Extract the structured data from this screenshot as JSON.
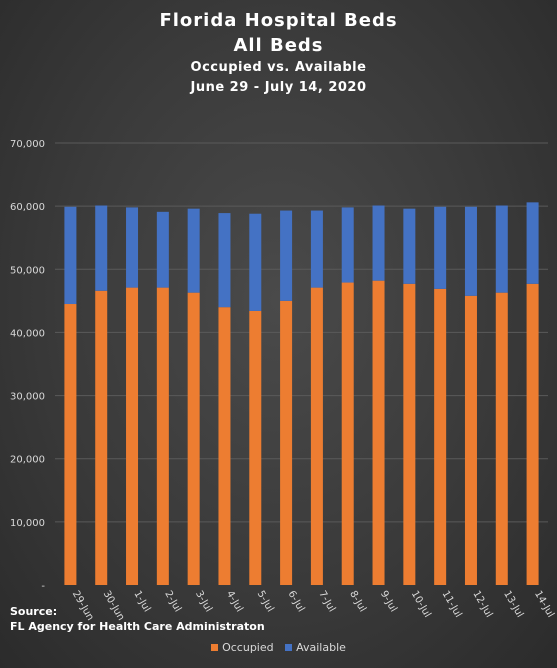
{
  "title_lines": [
    "Florida Hospital Beds",
    "All Beds"
  ],
  "subtitle_lines": [
    "Occupied vs. Available",
    "June 29 - July 14, 2020"
  ],
  "source": {
    "label": "Source:",
    "text": "FL Agency for Health Care Administraton"
  },
  "colors": {
    "occupied": "#ED7D31",
    "available": "#4472C4",
    "gridline": "#5a5a5a",
    "tick_text": "#d9d9d9"
  },
  "chart_data": {
    "type": "bar",
    "stacked": true,
    "title": "Florida Hospital Beds All Beds",
    "subtitle": "Occupied vs. Available June 29 - July 14, 2020",
    "xlabel": "",
    "ylabel": "",
    "ylim": [
      0,
      70000
    ],
    "yticks": [
      0,
      10000,
      20000,
      30000,
      40000,
      50000,
      60000,
      70000
    ],
    "ytick_labels": [
      "-",
      "10,000",
      "20,000",
      "30,000",
      "40,000",
      "50,000",
      "60,000",
      "70,000"
    ],
    "grid": true,
    "legend_position": "bottom",
    "categories": [
      "29-Jun",
      "30-Jun",
      "1-Jul",
      "2-Jul",
      "3-Jul",
      "4-Jul",
      "5-Jul",
      "6-Jul",
      "7-Jul",
      "8-Jul",
      "9-Jul",
      "10-Jul",
      "11-Jul",
      "12-Jul",
      "13-Jul",
      "14-Jul"
    ],
    "series": [
      {
        "name": "Occupied",
        "color": "#ED7D31",
        "values": [
          44500,
          46600,
          47100,
          47100,
          46300,
          44000,
          43400,
          45000,
          47100,
          47900,
          48200,
          47700,
          46900,
          45800,
          46300,
          47700
        ]
      },
      {
        "name": "Available",
        "color": "#4472C4",
        "values": [
          15400,
          13500,
          12700,
          12000,
          13300,
          14900,
          15400,
          14300,
          12200,
          11900,
          11900,
          11900,
          13000,
          14100,
          13800,
          12900
        ]
      }
    ]
  }
}
